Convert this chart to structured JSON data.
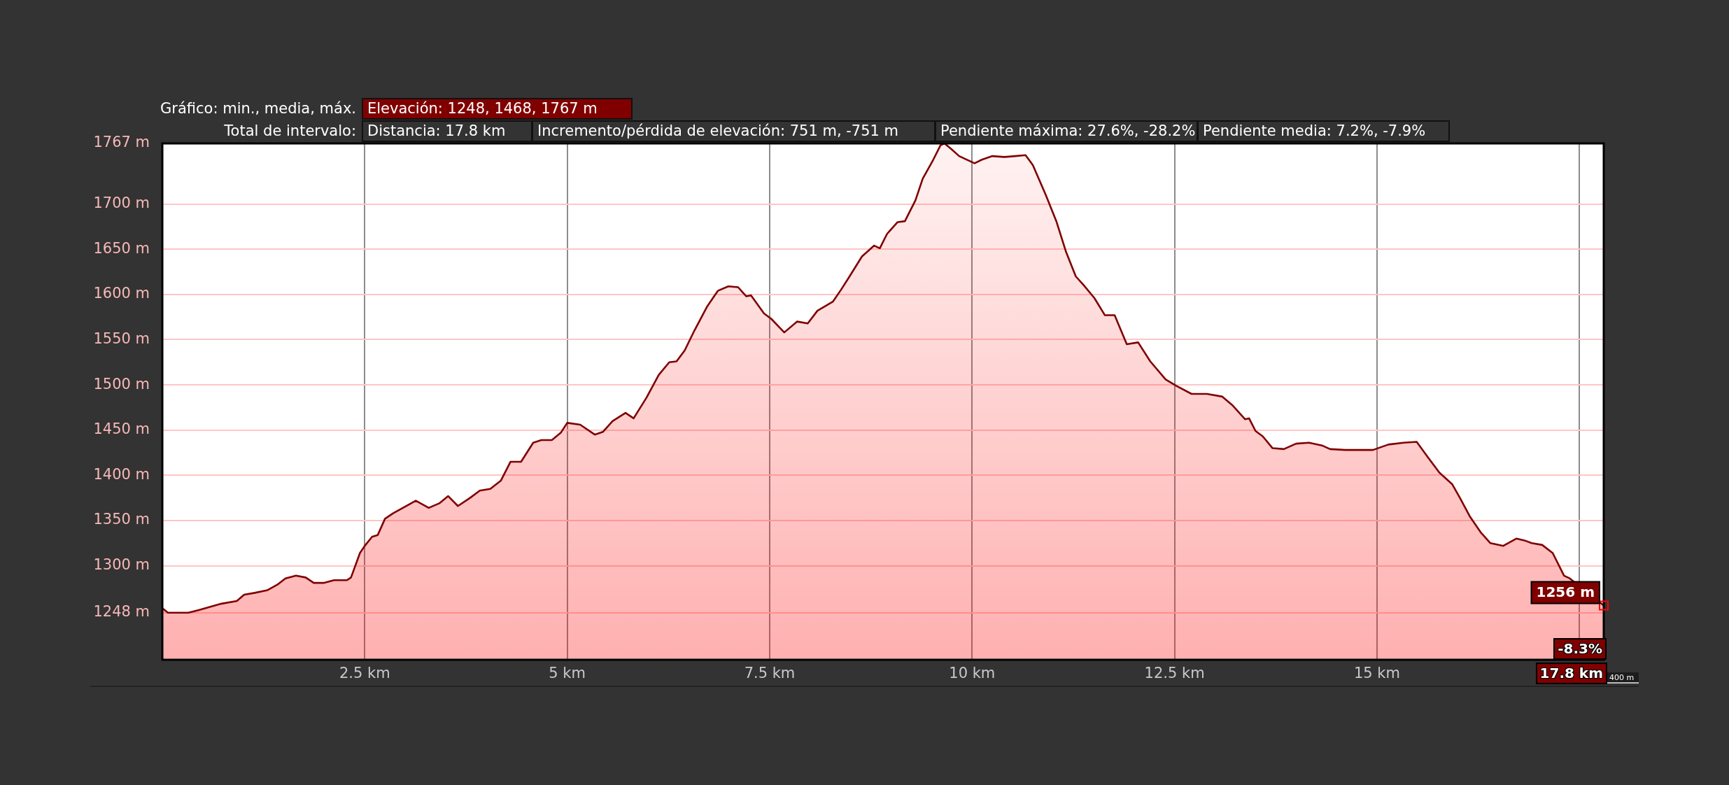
{
  "chart_data": {
    "type": "area",
    "x": [
      0,
      0.07,
      0.16,
      0.32,
      0.45,
      0.57,
      0.73,
      0.92,
      1.01,
      1.14,
      1.3,
      1.42,
      1.52,
      1.65,
      1.77,
      1.87,
      1.99,
      2.12,
      2.28,
      2.33,
      2.44,
      2.5,
      2.59,
      2.66,
      2.75,
      2.85,
      3.01,
      3.13,
      3.29,
      3.42,
      3.53,
      3.65,
      3.8,
      3.92,
      4.05,
      4.18,
      4.3,
      4.43,
      4.58,
      4.68,
      4.81,
      4.92,
      5.0,
      5.16,
      5.34,
      5.44,
      5.56,
      5.72,
      5.82,
      5.98,
      6.13,
      6.26,
      6.35,
      6.45,
      6.57,
      6.73,
      6.86,
      6.99,
      7.11,
      7.21,
      7.27,
      7.43,
      7.52,
      7.68,
      7.84,
      7.97,
      8.09,
      8.28,
      8.38,
      8.48,
      8.64,
      8.79,
      8.86,
      8.95,
      9.08,
      9.17,
      9.3,
      9.39,
      9.52,
      9.61,
      9.66,
      9.74,
      9.84,
      10.03,
      10.12,
      10.25,
      10.4,
      10.53,
      10.66,
      10.75,
      10.91,
      11.04,
      11.16,
      11.28,
      11.38,
      11.51,
      11.64,
      11.76,
      11.91,
      12.05,
      12.2,
      12.39,
      12.52,
      12.71,
      12.9,
      13.09,
      13.22,
      13.37,
      13.42,
      13.5,
      13.59,
      13.71,
      13.85,
      14.0,
      14.16,
      14.32,
      14.42,
      14.61,
      14.76,
      14.95,
      15.14,
      15.33,
      15.49,
      15.62,
      15.77,
      15.93,
      16.03,
      16.15,
      16.28,
      16.4,
      16.56,
      16.72,
      16.82,
      16.91,
      17.04,
      17.17,
      17.31,
      17.38,
      17.8
    ],
    "values": [
      1253,
      1248,
      1248,
      1248,
      1251,
      1254,
      1258,
      1261,
      1268,
      1270,
      1273,
      1279,
      1286,
      1289,
      1287,
      1281,
      1281,
      1284,
      1284,
      1287,
      1314,
      1322,
      1332,
      1334,
      1352,
      1358,
      1366,
      1372,
      1364,
      1369,
      1377,
      1366,
      1375,
      1383,
      1385,
      1394,
      1415,
      1415,
      1436,
      1439,
      1439,
      1447,
      1458,
      1456,
      1445,
      1448,
      1460,
      1469,
      1463,
      1486,
      1511,
      1525,
      1526,
      1538,
      1560,
      1587,
      1604,
      1609,
      1608,
      1598,
      1599,
      1579,
      1573,
      1558,
      1570,
      1568,
      1582,
      1592,
      1605,
      1619,
      1642,
      1654,
      1651,
      1667,
      1680,
      1681,
      1704,
      1728,
      1749,
      1765,
      1767,
      1761,
      1753,
      1745,
      1749,
      1753,
      1752,
      1753,
      1754,
      1743,
      1710,
      1681,
      1647,
      1620,
      1610,
      1596,
      1577,
      1577,
      1545,
      1547,
      1526,
      1506,
      1499,
      1490,
      1490,
      1487,
      1477,
      1462,
      1463,
      1449,
      1443,
      1430,
      1429,
      1435,
      1436,
      1433,
      1429,
      1428,
      1428,
      1428,
      1434,
      1436,
      1437,
      1421,
      1403,
      1390,
      1374,
      1354,
      1337,
      1325,
      1322,
      1330,
      1328,
      1325,
      1323,
      1314,
      1289,
      1286,
      1256
    ],
    "color": "#800000",
    "xlim": [
      0,
      17.8
    ],
    "ylim": [
      1196,
      1767
    ],
    "xticks": [
      {
        "value": 2.5,
        "label": "2.5 km"
      },
      {
        "value": 5,
        "label": "5 km"
      },
      {
        "value": 7.5,
        "label": "7.5 km"
      },
      {
        "value": 10,
        "label": "10 km"
      },
      {
        "value": 12.5,
        "label": "12.5 km"
      },
      {
        "value": 15,
        "label": "15 km"
      },
      {
        "value": 17.5,
        "label": null
      }
    ],
    "yticks": [
      {
        "value": 1248,
        "label": "1248 m"
      },
      {
        "value": 1300,
        "label": "1300 m"
      },
      {
        "value": 1350,
        "label": "1350 m"
      },
      {
        "value": 1400,
        "label": "1400 m"
      },
      {
        "value": 1450,
        "label": "1450 m"
      },
      {
        "value": 1500,
        "label": "1500 m"
      },
      {
        "value": 1550,
        "label": "1550 m"
      },
      {
        "value": 1600,
        "label": "1600 m"
      },
      {
        "value": 1650,
        "label": "1650 m"
      },
      {
        "value": 1700,
        "label": "1700 m"
      },
      {
        "value": 1767,
        "label": "1767 m"
      }
    ],
    "grid": true,
    "annotations": [
      "Gráfico: min., media, máx.",
      "Elevación: 1248, 1468, 1767 m",
      "Total de intervalo:",
      "Distancia: 17.8 km",
      "Incremento/pérdida de elevación: 751 m, -751 m",
      "Pendiente máxima: 27.6%, -28.2%",
      "Pendiente media: 7.2%, -7.9%",
      {
        "text": "1256 m",
        "x": 17.8,
        "y": 1256
      },
      "-8.3%",
      "17.8 km",
      "400 m"
    ]
  }
}
